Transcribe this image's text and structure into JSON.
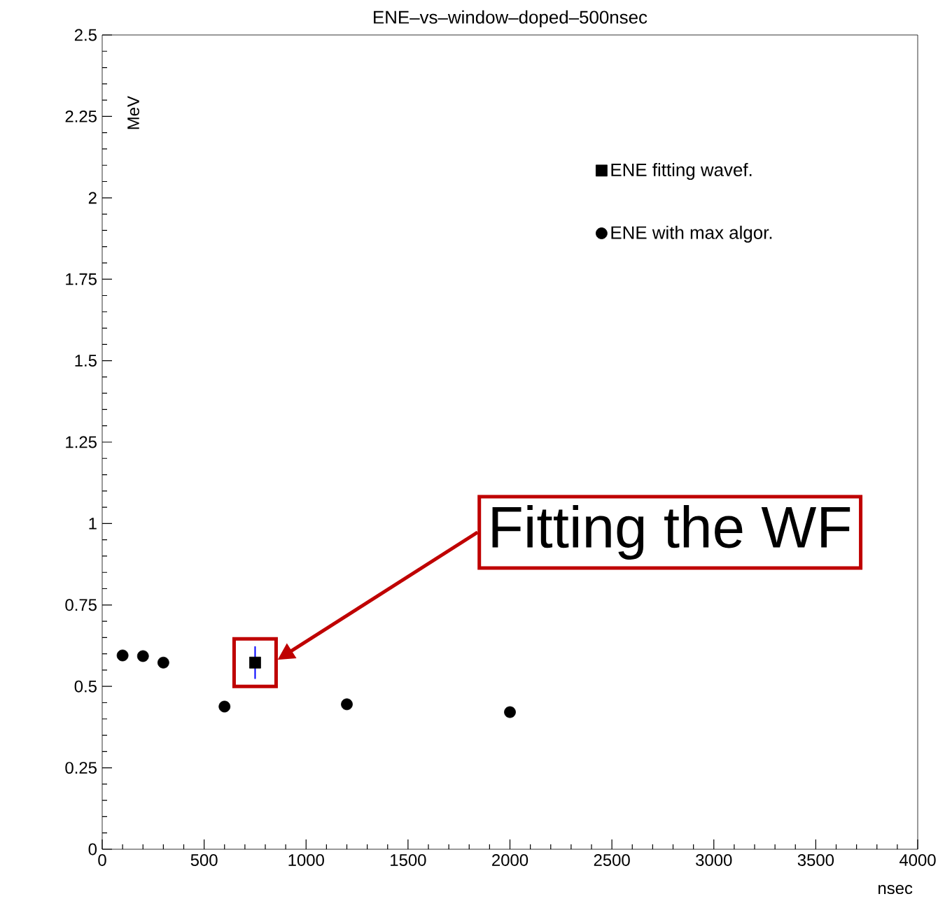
{
  "chart_data": {
    "type": "scatter",
    "title": "ENE–vs–window–doped–500nsec",
    "xlabel": "nsec",
    "ylabel": "MeV",
    "xlim": [
      0,
      4000
    ],
    "xticks": [
      0,
      500,
      1000,
      1500,
      2000,
      2500,
      3000,
      3500,
      4000
    ],
    "ylim": [
      0,
      2.5
    ],
    "yticks": [
      0,
      0.25,
      0.5,
      0.75,
      1,
      1.25,
      1.5,
      1.75,
      2,
      2.25,
      2.5
    ],
    "grid": false,
    "legend": "top right",
    "series": [
      {
        "name": "ENE fitting wavef.",
        "color": "#000000",
        "marker": "square",
        "x": [
          750
        ],
        "values": [
          0.573
        ],
        "errors": [
          0.05
        ]
      },
      {
        "name": "ENE with max algor.",
        "color": "#000000",
        "marker": "circle",
        "x": [
          100,
          200,
          300,
          600,
          1200,
          2000
        ],
        "values": [
          0.595,
          0.593,
          0.573,
          0.438,
          0.445,
          0.421
        ]
      }
    ],
    "annotations": [
      "Fitting the WF"
    ]
  }
}
